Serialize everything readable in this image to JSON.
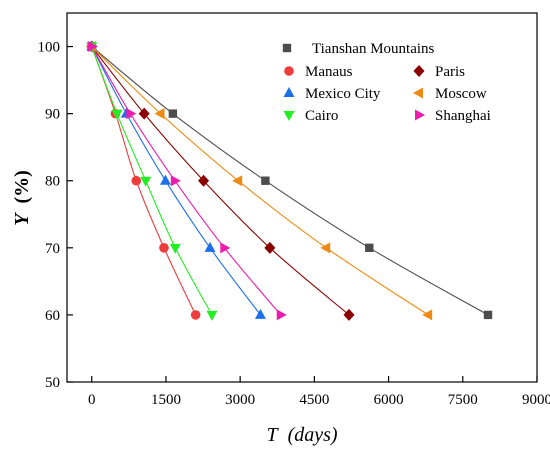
{
  "chart_data": {
    "type": "scatter",
    "title": "",
    "xlabel": {
      "symbol": "T",
      "unit": "(days)"
    },
    "ylabel": {
      "symbol": "Y",
      "unit": "(%)"
    },
    "xlim": [
      -500,
      9000
    ],
    "ylim": [
      50,
      105
    ],
    "xticks": [
      0,
      1500,
      3000,
      4500,
      6000,
      7500,
      9000
    ],
    "yticks": [
      50,
      60,
      70,
      80,
      90,
      100
    ],
    "x_tick_labels": [
      "0",
      "1500",
      "3000",
      "4500",
      "6000",
      "7500",
      "9000"
    ],
    "y_tick_labels": [
      "50",
      "60",
      "70",
      "80",
      "90",
      "100"
    ],
    "grid": false,
    "legend": {
      "placement": "top-right",
      "columns": 2
    },
    "series": [
      {
        "name": "Tianshan Mountains",
        "marker": "square",
        "color": "#4d4d4d",
        "x": [
          0,
          1640,
          3510,
          5610,
          8010
        ],
        "y": [
          100,
          90,
          80,
          70,
          60
        ]
      },
      {
        "name": "Manaus",
        "marker": "circle",
        "color": "#ee3b3b",
        "x": [
          0,
          480,
          900,
          1460,
          2100
        ],
        "y": [
          100,
          90,
          80,
          70,
          60
        ]
      },
      {
        "name": "Paris",
        "marker": "diamond",
        "color": "#8b0000",
        "x": [
          0,
          1060,
          2260,
          3600,
          5200
        ],
        "y": [
          100,
          90,
          80,
          70,
          60
        ]
      },
      {
        "name": "Mexico City",
        "marker": "triangle-up",
        "color": "#1c6fe8",
        "x": [
          0,
          700,
          1490,
          2390,
          3410
        ],
        "y": [
          100,
          90,
          80,
          70,
          60
        ]
      },
      {
        "name": "Moscow",
        "marker": "triangle-left",
        "color": "#ee8a12",
        "x": [
          0,
          1390,
          2960,
          4740,
          6800
        ],
        "y": [
          100,
          90,
          80,
          70,
          60
        ]
      },
      {
        "name": "Cairo",
        "marker": "triangle-down",
        "color": "#22ee22",
        "x": [
          0,
          510,
          1090,
          1690,
          2430
        ],
        "y": [
          100,
          90,
          80,
          70,
          60
        ]
      },
      {
        "name": "Shanghai",
        "marker": "triangle-right",
        "color": "#ee1cad",
        "x": [
          0,
          780,
          1680,
          2680,
          3820
        ],
        "y": [
          100,
          90,
          80,
          70,
          60
        ]
      }
    ]
  }
}
